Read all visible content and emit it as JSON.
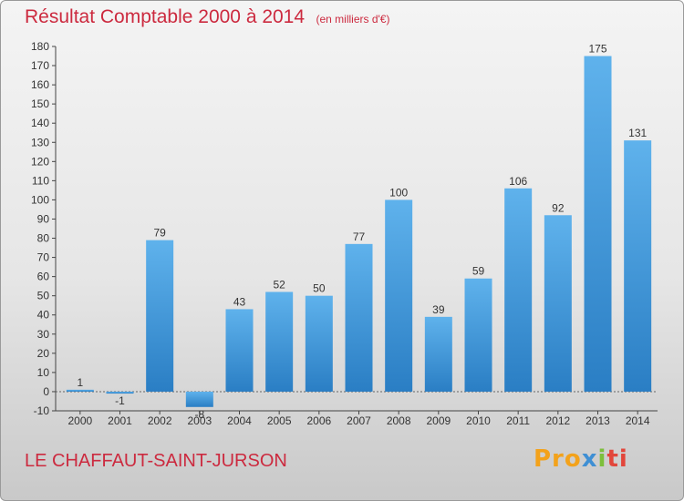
{
  "header": {
    "title": "Résultat Comptable 2000 à 2014",
    "subtitle": "(en milliers d'€)"
  },
  "footer": {
    "commune": "LE CHAFFAUT-SAINT-JURSON",
    "logo_parts": [
      "Pro",
      "x",
      "i",
      "ti"
    ]
  },
  "colors": {
    "title": "#cc2a3f",
    "bar_top": "#5fb2ec",
    "bar_bottom": "#2a7ec4"
  },
  "chart_data": {
    "type": "bar",
    "title": "Résultat Comptable 2000 à 2014",
    "subtitle": "(en milliers d'€)",
    "xlabel": "",
    "ylabel": "",
    "ylim": [
      -10,
      180
    ],
    "yticks": [
      -10,
      0,
      10,
      20,
      30,
      40,
      50,
      60,
      70,
      80,
      90,
      100,
      110,
      120,
      130,
      140,
      150,
      160,
      170,
      180
    ],
    "categories": [
      "2000",
      "2001",
      "2002",
      "2003",
      "2004",
      "2005",
      "2006",
      "2007",
      "2008",
      "2009",
      "2010",
      "2011",
      "2012",
      "2013",
      "2014"
    ],
    "values": [
      1,
      -1,
      79,
      -8,
      43,
      52,
      50,
      77,
      100,
      39,
      59,
      106,
      92,
      175,
      131
    ],
    "labels": [
      "1",
      "-1",
      "79",
      "-8",
      "43",
      "52",
      "50",
      "77",
      "100",
      "39",
      "59",
      "106",
      "92",
      "175",
      "131"
    ],
    "grid": false,
    "legend": "none"
  }
}
